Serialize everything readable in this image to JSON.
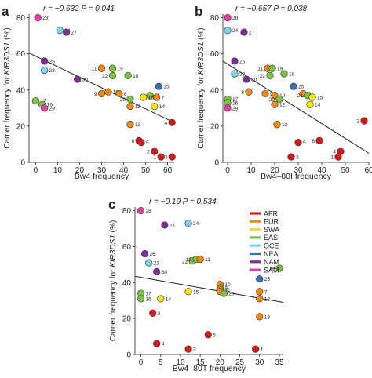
{
  "colors": {
    "AFR": "#d7191c",
    "EUR": "#f28a17",
    "SWA": "#f5e600",
    "EAS": "#7dc242",
    "OCE": "#7fd3e8",
    "NEA": "#3b6fb6",
    "NAM": "#7b3294",
    "SAM": "#e23fa6"
  },
  "chart_data": [
    {
      "panel": "a",
      "type": "scatter",
      "stats": "r = −0.632  P = 0.041",
      "xlabel": "Bw4 frequency",
      "ylabel": "Carrier frequency for KIR3DS1 (%)",
      "xlim": [
        -3,
        63
      ],
      "ylim": [
        0,
        82
      ],
      "xticks": [
        0,
        10,
        20,
        30,
        40,
        50,
        60
      ],
      "yticks": [
        0,
        20,
        40,
        60,
        80
      ],
      "fit": {
        "x": [
          -3,
          63
        ],
        "y": [
          60.5,
          22
        ]
      },
      "points": [
        {
          "id": "28",
          "x": 1,
          "y": 80,
          "g": "SAM",
          "pos": "r"
        },
        {
          "id": "24",
          "x": 11,
          "y": 73,
          "g": "OCE",
          "pos": "r"
        },
        {
          "id": "27",
          "x": 14,
          "y": 72,
          "g": "NAM",
          "pos": "r"
        },
        {
          "id": "26",
          "x": 4,
          "y": 56,
          "g": "NAM",
          "pos": "r"
        },
        {
          "id": "23",
          "x": 4,
          "y": 51,
          "g": "OCE",
          "pos": "r"
        },
        {
          "id": "11",
          "x": 30,
          "y": 52,
          "g": "EUR",
          "pos": "l"
        },
        {
          "id": "19",
          "x": 35,
          "y": 52,
          "g": "EAS",
          "pos": "r"
        },
        {
          "id": "22",
          "x": 35,
          "y": 48,
          "g": "EAS",
          "pos": "l"
        },
        {
          "id": "18",
          "x": 42,
          "y": 48,
          "g": "EAS",
          "pos": "r"
        },
        {
          "id": "30",
          "x": 19,
          "y": 46,
          "g": "NAM",
          "pos": "r"
        },
        {
          "id": "25",
          "x": 56,
          "y": 42,
          "g": "NEA",
          "pos": "r"
        },
        {
          "id": "9",
          "x": 30,
          "y": 38,
          "g": "EUR",
          "pos": "l"
        },
        {
          "id": "10",
          "x": 33,
          "y": 39,
          "g": "EUR",
          "pos": "r"
        },
        {
          "id": "8",
          "x": 38,
          "y": 38,
          "g": "EUR",
          "pos": "r"
        },
        {
          "id": "20",
          "x": 43,
          "y": 35,
          "g": "EAS",
          "pos": "l"
        },
        {
          "id": "21",
          "x": 52,
          "y": 37,
          "g": "EAS",
          "pos": "r"
        },
        {
          "id": "15",
          "x": 49,
          "y": 36,
          "g": "SWA",
          "pos": "r"
        },
        {
          "id": "7",
          "x": 55,
          "y": 36,
          "g": "EUR",
          "pos": "r"
        },
        {
          "id": "12",
          "x": 43,
          "y": 31,
          "g": "EUR",
          "pos": "r"
        },
        {
          "id": "14",
          "x": 54,
          "y": 31,
          "g": "SWA",
          "pos": "r"
        },
        {
          "id": "17",
          "x": 0,
          "y": 34,
          "g": "EAS",
          "pos": "r"
        },
        {
          "id": "16",
          "x": 3,
          "y": 32,
          "g": "EAS",
          "pos": "r"
        },
        {
          "id": "29",
          "x": 4,
          "y": 30,
          "g": "SAM",
          "pos": "r"
        },
        {
          "id": "13",
          "x": 43,
          "y": 21,
          "g": "EUR",
          "pos": "r"
        },
        {
          "id": "4",
          "x": 62,
          "y": 22,
          "g": "AFR",
          "pos": "l"
        },
        {
          "id": "6",
          "x": 47,
          "y": 12,
          "g": "AFR",
          "pos": "l"
        },
        {
          "id": "5",
          "x": 48,
          "y": 11,
          "g": "AFR",
          "pos": "r"
        },
        {
          "id": "2",
          "x": 54,
          "y": 6,
          "g": "AFR",
          "pos": "l"
        },
        {
          "id": "1",
          "x": 57,
          "y": 3,
          "g": "AFR",
          "pos": "l"
        },
        {
          "id": "3",
          "x": 62,
          "y": 3,
          "g": "AFR",
          "pos": "l"
        }
      ]
    },
    {
      "panel": "b",
      "type": "scatter",
      "stats": "r = −0.657  P = 0.038",
      "xlabel": "Bw4–80I frequency",
      "ylabel": "Carrier frequency for KIR3DS1 (%)",
      "xlim": [
        -2,
        60
      ],
      "ylim": [
        0,
        82
      ],
      "xticks": [
        0,
        10,
        20,
        30,
        40,
        50,
        60
      ],
      "yticks": [
        0,
        20,
        40,
        60,
        80
      ],
      "fit": {
        "x": [
          -2,
          60
        ],
        "y": [
          56,
          5
        ]
      },
      "points": [
        {
          "id": "28",
          "x": 0,
          "y": 80,
          "g": "SAM",
          "pos": "r"
        },
        {
          "id": "24",
          "x": 0,
          "y": 73,
          "g": "OCE",
          "pos": "r"
        },
        {
          "id": "27",
          "x": 7,
          "y": 72,
          "g": "NAM",
          "pos": "r"
        },
        {
          "id": "26",
          "x": 3,
          "y": 56,
          "g": "NAM",
          "pos": "r"
        },
        {
          "id": "11",
          "x": 17,
          "y": 52,
          "g": "EUR",
          "pos": "l"
        },
        {
          "id": "19",
          "x": 19,
          "y": 52,
          "g": "EAS",
          "pos": "r"
        },
        {
          "id": "22",
          "x": 18,
          "y": 48,
          "g": "EAS",
          "pos": "l"
        },
        {
          "id": "18",
          "x": 24,
          "y": 49,
          "g": "EAS",
          "pos": "r"
        },
        {
          "id": "23",
          "x": 3,
          "y": 49,
          "g": "OCE",
          "pos": "r"
        },
        {
          "id": "30",
          "x": 8,
          "y": 46,
          "g": "NAM",
          "pos": "r"
        },
        {
          "id": "25",
          "x": 28,
          "y": 42,
          "g": "NEA",
          "pos": "r"
        },
        {
          "id": "8",
          "x": 9,
          "y": 39,
          "g": "EUR",
          "pos": "l"
        },
        {
          "id": "9",
          "x": 16,
          "y": 38,
          "g": "EUR",
          "pos": "r"
        },
        {
          "id": "10",
          "x": 20,
          "y": 37,
          "g": "EUR",
          "pos": "r"
        },
        {
          "id": "20",
          "x": 22,
          "y": 35,
          "g": "EAS",
          "pos": "l"
        },
        {
          "id": "7",
          "x": 32,
          "y": 38,
          "g": "EUR",
          "pos": "r"
        },
        {
          "id": "21",
          "x": 34,
          "y": 37,
          "g": "EAS",
          "pos": "l"
        },
        {
          "id": "15",
          "x": 36,
          "y": 36,
          "g": "SWA",
          "pos": "r"
        },
        {
          "id": "17",
          "x": 0,
          "y": 35,
          "g": "EAS",
          "pos": "r"
        },
        {
          "id": "16",
          "x": 0,
          "y": 33,
          "g": "EAS",
          "pos": "r"
        },
        {
          "id": "29",
          "x": 0,
          "y": 30,
          "g": "SAM",
          "pos": "r"
        },
        {
          "id": "12",
          "x": 20,
          "y": 32,
          "g": "EUR",
          "pos": "r"
        },
        {
          "id": "14",
          "x": 35,
          "y": 32,
          "g": "SWA",
          "pos": "r"
        },
        {
          "id": "13",
          "x": 21,
          "y": 21,
          "g": "EUR",
          "pos": "r"
        },
        {
          "id": "2",
          "x": 58,
          "y": 23,
          "g": "AFR",
          "pos": "l"
        },
        {
          "id": "5",
          "x": 30,
          "y": 11,
          "g": "AFR",
          "pos": "r"
        },
        {
          "id": "6",
          "x": 39,
          "y": 12,
          "g": "AFR",
          "pos": "l"
        },
        {
          "id": "4",
          "x": 48,
          "y": 6,
          "g": "AFR",
          "pos": "l"
        },
        {
          "id": "1",
          "x": 47,
          "y": 3,
          "g": "AFR",
          "pos": "l"
        },
        {
          "id": "3",
          "x": 27,
          "y": 3,
          "g": "AFR",
          "pos": "r"
        }
      ]
    },
    {
      "panel": "c",
      "type": "scatter",
      "stats": "r = −0.19  P = 0.534",
      "xlabel": "Bw4–80T frequency",
      "ylabel": "Carrier frequency for KIR3DS1 (%)",
      "xlim": [
        -1.5,
        36
      ],
      "ylim": [
        0,
        82
      ],
      "xticks": [
        0,
        5,
        10,
        15,
        20,
        25,
        30,
        35
      ],
      "yticks": [
        0,
        20,
        40,
        60,
        80
      ],
      "fit": {
        "x": [
          -1.5,
          36
        ],
        "y": [
          43.5,
          29
        ]
      },
      "legend": [
        "AFR",
        "EUR",
        "SWA",
        "EAS",
        "OCE",
        "NEA",
        "NAM",
        "SAM"
      ],
      "points": [
        {
          "id": "28",
          "x": 0,
          "y": 80,
          "g": "SAM",
          "pos": "r"
        },
        {
          "id": "24",
          "x": 12,
          "y": 73,
          "g": "OCE",
          "pos": "r"
        },
        {
          "id": "27",
          "x": 6,
          "y": 72,
          "g": "NAM",
          "pos": "r"
        },
        {
          "id": "26",
          "x": 1,
          "y": 56,
          "g": "NAM",
          "pos": "r"
        },
        {
          "id": "23",
          "x": 2,
          "y": 51,
          "g": "OCE",
          "pos": "r"
        },
        {
          "id": "22",
          "x": 13,
          "y": 52,
          "g": "EAS",
          "pos": "l"
        },
        {
          "id": "19",
          "x": 14,
          "y": 53,
          "g": "EAS",
          "pos": "l"
        },
        {
          "id": "11",
          "x": 15,
          "y": 53,
          "g": "EUR",
          "pos": "r"
        },
        {
          "id": "18",
          "x": 35,
          "y": 48,
          "g": "EAS",
          "pos": "l"
        },
        {
          "id": "30",
          "x": 4,
          "y": 46,
          "g": "NAM",
          "pos": "r"
        },
        {
          "id": "25",
          "x": 30,
          "y": 42,
          "g": "NEA",
          "pos": "r"
        },
        {
          "id": "10",
          "x": 20,
          "y": 39,
          "g": "EUR",
          "pos": "r"
        },
        {
          "id": "9",
          "x": 20,
          "y": 37,
          "g": "EUR",
          "pos": "r"
        },
        {
          "id": "21",
          "x": 20,
          "y": 36,
          "g": "EAS",
          "pos": "r"
        },
        {
          "id": "8",
          "x": 20,
          "y": 35,
          "g": "EUR",
          "pos": "r"
        },
        {
          "id": "20",
          "x": 21,
          "y": 34,
          "g": "EAS",
          "pos": "r"
        },
        {
          "id": "17",
          "x": 0,
          "y": 34,
          "g": "EAS",
          "pos": "r"
        },
        {
          "id": "16",
          "x": 0,
          "y": 31,
          "g": "EAS",
          "pos": "r"
        },
        {
          "id": "15",
          "x": 12,
          "y": 35,
          "g": "SWA",
          "pos": "r"
        },
        {
          "id": "14",
          "x": 5,
          "y": 31,
          "g": "SWA",
          "pos": "r"
        },
        {
          "id": "7",
          "x": 30,
          "y": 35,
          "g": "EUR",
          "pos": "r"
        },
        {
          "id": "12",
          "x": 30,
          "y": 31,
          "g": "EUR",
          "pos": "r"
        },
        {
          "id": "13",
          "x": 30,
          "y": 21,
          "g": "EUR",
          "pos": "r"
        },
        {
          "id": "2",
          "x": 3,
          "y": 23,
          "g": "AFR",
          "pos": "r"
        },
        {
          "id": "5",
          "x": 17,
          "y": 11,
          "g": "AFR",
          "pos": "r"
        },
        {
          "id": "4",
          "x": 4,
          "y": 6,
          "g": "AFR",
          "pos": "r"
        },
        {
          "id": "1",
          "x": 29,
          "y": 3,
          "g": "AFR",
          "pos": "r"
        },
        {
          "id": "3",
          "x": 12,
          "y": 3,
          "g": "AFR",
          "pos": "r"
        }
      ]
    }
  ]
}
